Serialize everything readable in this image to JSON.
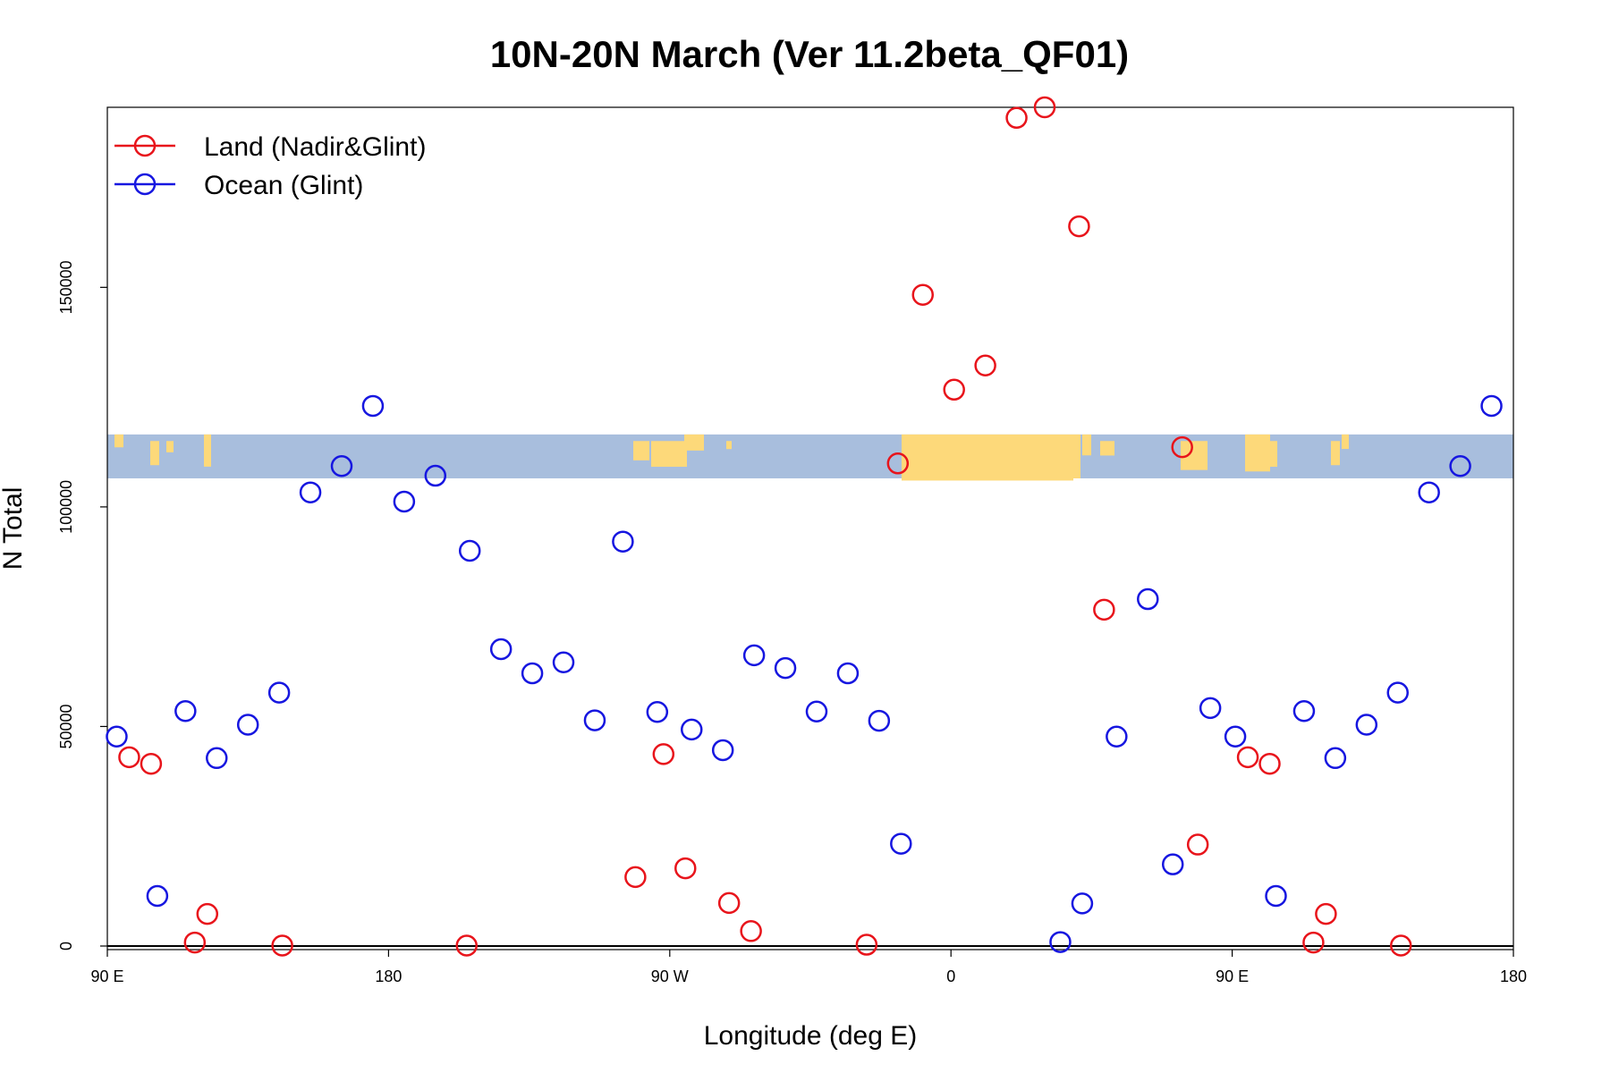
{
  "chart_data": {
    "type": "scatter",
    "title": "10N-20N March (Ver 11.2beta_QF01)",
    "xlabel": "Longitude (deg E)",
    "ylabel": "N Total",
    "xlim": [
      90,
      540
    ],
    "ylim": [
      0,
      191000
    ],
    "x_ticks": [
      {
        "value": 90,
        "label": "90 E"
      },
      {
        "value": 180,
        "label": "180"
      },
      {
        "value": 270,
        "label": "90 W"
      },
      {
        "value": 360,
        "label": "0"
      },
      {
        "value": 450,
        "label": "90 E"
      },
      {
        "value": 540,
        "label": "180"
      }
    ],
    "y_ticks": [
      {
        "value": 0,
        "label": "0"
      },
      {
        "value": 50000,
        "label": "50000"
      },
      {
        "value": 100000,
        "label": "100000"
      },
      {
        "value": 150000,
        "label": "150000"
      }
    ],
    "colors": {
      "land": "#e8141b",
      "ocean": "#1616e0",
      "ocean_band": "#a8bedd",
      "land_band": "#fdd97a"
    },
    "series": [
      {
        "name": "Land (Nadir&Glint)",
        "color": "#e8141b",
        "points": [
          [
            97,
            43000
          ],
          [
            104,
            41500
          ],
          [
            118,
            800
          ],
          [
            122,
            7300
          ],
          [
            146,
            100
          ],
          [
            205,
            100
          ],
          [
            259,
            15700
          ],
          [
            268,
            43700
          ],
          [
            275,
            17700
          ],
          [
            289,
            9800
          ],
          [
            296,
            3400
          ],
          [
            333,
            300
          ],
          [
            343,
            109900
          ],
          [
            351,
            148300
          ],
          [
            361,
            126700
          ],
          [
            371,
            132200
          ],
          [
            381,
            188600
          ],
          [
            390,
            191000
          ],
          [
            401,
            163900
          ],
          [
            409,
            76600
          ],
          [
            434,
            113600
          ],
          [
            439,
            23100
          ],
          [
            455,
            43000
          ],
          [
            462,
            41500
          ],
          [
            476,
            800
          ],
          [
            480,
            7300
          ],
          [
            504,
            100
          ]
        ]
      },
      {
        "name": "Ocean (Glint)",
        "color": "#1616e0",
        "points": [
          [
            93,
            47700
          ],
          [
            106,
            11400
          ],
          [
            115,
            53500
          ],
          [
            125,
            42800
          ],
          [
            135,
            50400
          ],
          [
            145,
            57700
          ],
          [
            155,
            103300
          ],
          [
            165,
            109300
          ],
          [
            175,
            123000
          ],
          [
            185,
            101200
          ],
          [
            195,
            107100
          ],
          [
            206,
            90000
          ],
          [
            216,
            67600
          ],
          [
            226,
            62100
          ],
          [
            236,
            64600
          ],
          [
            246,
            51400
          ],
          [
            255,
            92100
          ],
          [
            266,
            53300
          ],
          [
            277,
            49300
          ],
          [
            287,
            44600
          ],
          [
            297,
            66200
          ],
          [
            307,
            63300
          ],
          [
            317,
            53400
          ],
          [
            327,
            62100
          ],
          [
            337,
            51300
          ],
          [
            344,
            23300
          ],
          [
            395,
            900
          ],
          [
            402,
            9700
          ],
          [
            413,
            47700
          ],
          [
            423,
            79000
          ],
          [
            431,
            18600
          ],
          [
            443,
            54200
          ],
          [
            451,
            47700
          ],
          [
            473,
            53500
          ],
          [
            483,
            42800
          ],
          [
            493,
            50400
          ],
          [
            503,
            57700
          ],
          [
            513,
            103300
          ],
          [
            523,
            109300
          ],
          [
            533,
            123000
          ],
          [
            464,
            11400
          ]
        ]
      }
    ],
    "legend": {
      "position": "top-left",
      "entries": [
        "Land (Nadir&Glint)",
        "Ocean (Glint)"
      ]
    },
    "annotations": [
      {
        "type": "map-strip",
        "description_label": "World map strip",
        "y_range": [
          106500,
          116500
        ]
      }
    ]
  }
}
